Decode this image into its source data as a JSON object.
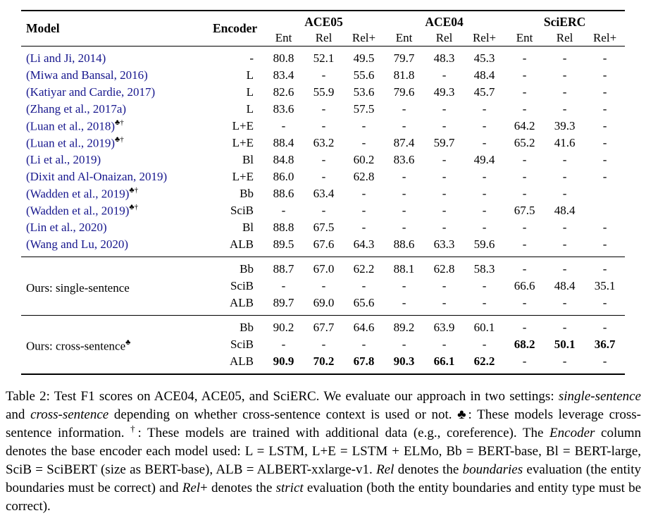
{
  "table": {
    "link_color": "#16168d",
    "columns": {
      "model": "Model",
      "encoder": "Encoder"
    },
    "groups": [
      {
        "label": "ACE05",
        "sub": [
          "Ent",
          "Rel",
          "Rel+"
        ]
      },
      {
        "label": "ACE04",
        "sub": [
          "Ent",
          "Rel",
          "Rel+"
        ]
      },
      {
        "label": "SciERC",
        "sub": [
          "Ent",
          "Rel",
          "Rel+"
        ]
      }
    ],
    "sections": [
      {
        "label": "",
        "sup": "",
        "rows": [
          {
            "model": "(Li and Ji, 2014)",
            "sup": "",
            "link": true,
            "encoder": "-",
            "values": [
              "80.8",
              "52.1",
              "49.5",
              "79.7",
              "48.3",
              "45.3",
              "-",
              "-",
              "-"
            ]
          },
          {
            "model": "(Miwa and Bansal, 2016)",
            "sup": "",
            "link": true,
            "encoder": "L",
            "values": [
              "83.4",
              "-",
              "55.6",
              "81.8",
              "-",
              "48.4",
              "-",
              "-",
              "-"
            ]
          },
          {
            "model": "(Katiyar and Cardie, 2017)",
            "sup": "",
            "link": true,
            "encoder": "L",
            "values": [
              "82.6",
              "55.9",
              "53.6",
              "79.6",
              "49.3",
              "45.7",
              "-",
              "-",
              "-"
            ]
          },
          {
            "model": "(Zhang et al., 2017a)",
            "sup": "",
            "link": true,
            "encoder": "L",
            "values": [
              "83.6",
              "-",
              "57.5",
              "-",
              "-",
              "-",
              "-",
              "-",
              "-"
            ]
          },
          {
            "model": "(Luan et al., 2018)",
            "sup": "♣†",
            "link": true,
            "encoder": "L+E",
            "values": [
              "-",
              "-",
              "-",
              "-",
              "-",
              "-",
              "64.2",
              "39.3",
              "-"
            ]
          },
          {
            "model": "(Luan et al., 2019)",
            "sup": "♣†",
            "link": true,
            "encoder": "L+E",
            "values": [
              "88.4",
              "63.2",
              "-",
              "87.4",
              "59.7",
              "-",
              "65.2",
              "41.6",
              "-"
            ]
          },
          {
            "model": "(Li et al., 2019)",
            "sup": "",
            "link": true,
            "encoder": "Bl",
            "values": [
              "84.8",
              "-",
              "60.2",
              "83.6",
              "-",
              "49.4",
              "-",
              "-",
              "-"
            ]
          },
          {
            "model": "(Dixit and Al-Onaizan, 2019)",
            "sup": "",
            "link": true,
            "encoder": "L+E",
            "values": [
              "86.0",
              "-",
              "62.8",
              "-",
              "-",
              "-",
              "-",
              "-",
              "-"
            ]
          },
          {
            "model": "(Wadden et al., 2019)",
            "sup": "♣†",
            "link": true,
            "encoder": "Bb",
            "values": [
              "88.6",
              "63.4",
              "-",
              "-",
              "-",
              "-",
              "-",
              "-",
              ""
            ]
          },
          {
            "model": "(Wadden et al., 2019)",
            "sup": "♣†",
            "link": true,
            "encoder": "SciB",
            "values": [
              "-",
              "-",
              "-",
              "-",
              "-",
              "-",
              "67.5",
              "48.4",
              ""
            ]
          },
          {
            "model": "(Lin et al., 2020)",
            "sup": "",
            "link": true,
            "encoder": "Bl",
            "values": [
              "88.8",
              "67.5",
              "-",
              "-",
              "-",
              "-",
              "-",
              "-",
              "-"
            ]
          },
          {
            "model": "(Wang and Lu, 2020)",
            "sup": "",
            "link": true,
            "encoder": "ALB",
            "values": [
              "89.5",
              "67.6",
              "64.3",
              "88.6",
              "63.3",
              "59.6",
              "-",
              "-",
              "-"
            ]
          }
        ]
      },
      {
        "label": "Ours: single-sentence",
        "sup": "",
        "rows": [
          {
            "encoder": "Bb",
            "values": [
              "88.7",
              "67.0",
              "62.2",
              "88.1",
              "62.8",
              "58.3",
              "-",
              "-",
              "-"
            ]
          },
          {
            "encoder": "SciB",
            "values": [
              "-",
              "-",
              "-",
              "-",
              "-",
              "-",
              "66.6",
              "48.4",
              "35.1"
            ]
          },
          {
            "encoder": "ALB",
            "values": [
              "89.7",
              "69.0",
              "65.6",
              "-",
              "-",
              "-",
              "-",
              "-",
              "-"
            ]
          }
        ]
      },
      {
        "label": "Ours: cross-sentence",
        "sup": "♣",
        "rows": [
          {
            "encoder": "Bb",
            "values": [
              "90.2",
              "67.7",
              "64.6",
              "89.2",
              "63.9",
              "60.1",
              "-",
              "-",
              "-"
            ]
          },
          {
            "encoder": "SciB",
            "bold": true,
            "values": [
              "-",
              "-",
              "-",
              "-",
              "-",
              "-",
              "68.2",
              "50.1",
              "36.7"
            ]
          },
          {
            "encoder": "ALB",
            "bold": true,
            "values": [
              "90.9",
              "70.2",
              "67.8",
              "90.3",
              "66.1",
              "62.2",
              "-",
              "-",
              "-"
            ]
          }
        ]
      }
    ]
  },
  "caption": {
    "segments": [
      {
        "style": "normal",
        "text": "Table 2: Test F1 scores on ACE04, ACE05, and SciERC. We evaluate our approach in two settings: "
      },
      {
        "style": "italic",
        "text": "single-sentence"
      },
      {
        "style": "normal",
        "text": " and "
      },
      {
        "style": "italic",
        "text": "cross-sentence"
      },
      {
        "style": "normal",
        "text": " depending on whether cross-sentence context is used or not. ♣: These models leverage cross-sentence information. "
      },
      {
        "style": "sup",
        "text": "†"
      },
      {
        "style": "normal",
        "text": ": These models are trained with additional data (e.g., coreference). The "
      },
      {
        "style": "italic",
        "text": "Encoder"
      },
      {
        "style": "normal",
        "text": " column denotes the base encoder each model used: L = LSTM, L+E = LSTM + ELMo, Bb = BERT-base, Bl = BERT-large, SciB = SciBERT (size as BERT-base), ALB = ALBERT-xxlarge-v1. "
      },
      {
        "style": "italic",
        "text": "Rel"
      },
      {
        "style": "normal",
        "text": " denotes the "
      },
      {
        "style": "italic",
        "text": "boundaries"
      },
      {
        "style": "normal",
        "text": " evaluation (the entity boundaries must be correct) and "
      },
      {
        "style": "italic",
        "text": "Rel"
      },
      {
        "style": "normal",
        "text": "+ denotes the "
      },
      {
        "style": "italic",
        "text": "strict"
      },
      {
        "style": "normal",
        "text": " evaluation (both the entity boundaries and entity type must be correct)."
      }
    ]
  }
}
